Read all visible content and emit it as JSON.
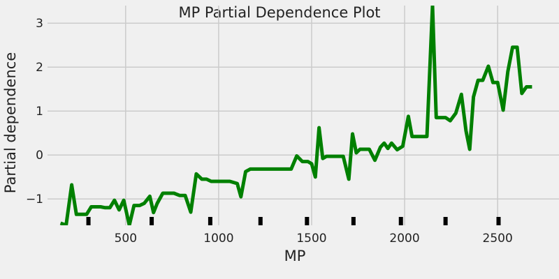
{
  "chart_data": {
    "type": "line",
    "title": "MP Partial Dependence Plot",
    "xlabel": "MP",
    "ylabel": "Partial dependence",
    "xlim": [
      80,
      2830
    ],
    "ylim": [
      -1.6,
      3.4
    ],
    "xticks": [
      500,
      1000,
      1500,
      2000,
      2500
    ],
    "yticks": [
      -1,
      0,
      1,
      2,
      3
    ],
    "xtick_labels": [
      "500",
      "1000",
      "1500",
      "2000",
      "2500"
    ],
    "ytick_labels": [
      "−1",
      "0",
      "1",
      "2",
      "3"
    ],
    "grid": true,
    "line_color": "#008000",
    "rug_color": "#000000",
    "series": [
      {
        "x": [
          150,
          180,
          210,
          235,
          260,
          290,
          315,
          340,
          365,
          390,
          415,
          440,
          465,
          490,
          520,
          545,
          575,
          600,
          630,
          650,
          670,
          700,
          730,
          760,
          790,
          820,
          850,
          880,
          910,
          935,
          960,
          985,
          1020,
          1060,
          1100,
          1120,
          1145,
          1170,
          1200,
          1230,
          1270,
          1310,
          1350,
          1390,
          1420,
          1450,
          1480,
          1500,
          1520,
          1540,
          1560,
          1580,
          1610,
          1640,
          1670,
          1700,
          1720,
          1740,
          1760,
          1780,
          1810,
          1840,
          1870,
          1890,
          1910,
          1930,
          1960,
          1990,
          2020,
          2040,
          2060,
          2090,
          2120,
          2150,
          2170,
          2195,
          2220,
          2245,
          2275,
          2305,
          2330,
          2350,
          2370,
          2395,
          2420,
          2450,
          2475,
          2500,
          2530,
          2555,
          2580,
          2605,
          2630,
          2655,
          2685
        ],
        "y": [
          -1.55,
          -1.6,
          -0.68,
          -1.35,
          -1.35,
          -1.35,
          -1.18,
          -1.18,
          -1.18,
          -1.2,
          -1.2,
          -1.03,
          -1.25,
          -1.03,
          -1.6,
          -1.15,
          -1.15,
          -1.1,
          -0.94,
          -1.31,
          -1.1,
          -0.87,
          -0.87,
          -0.87,
          -0.92,
          -0.92,
          -1.3,
          -0.43,
          -0.55,
          -0.55,
          -0.6,
          -0.6,
          -0.6,
          -0.6,
          -0.65,
          -0.95,
          -0.38,
          -0.32,
          -0.32,
          -0.32,
          -0.32,
          -0.32,
          -0.32,
          -0.32,
          -0.02,
          -0.15,
          -0.15,
          -0.2,
          -0.5,
          0.62,
          -0.08,
          -0.03,
          -0.03,
          -0.03,
          -0.03,
          -0.55,
          0.48,
          0.05,
          0.13,
          0.13,
          0.13,
          -0.12,
          0.18,
          0.27,
          0.15,
          0.27,
          0.12,
          0.2,
          0.88,
          0.42,
          0.42,
          0.42,
          0.42,
          3.4,
          0.85,
          0.85,
          0.85,
          0.78,
          0.95,
          1.38,
          0.55,
          0.13,
          1.32,
          1.7,
          1.7,
          2.02,
          1.65,
          1.65,
          1.02,
          1.9,
          2.45,
          2.45,
          1.4,
          1.55,
          1.55
        ]
      }
    ],
    "rug_x": [
      300,
      640,
      955,
      1225,
      1475,
      1725,
      1980,
      2220,
      2505
    ]
  }
}
